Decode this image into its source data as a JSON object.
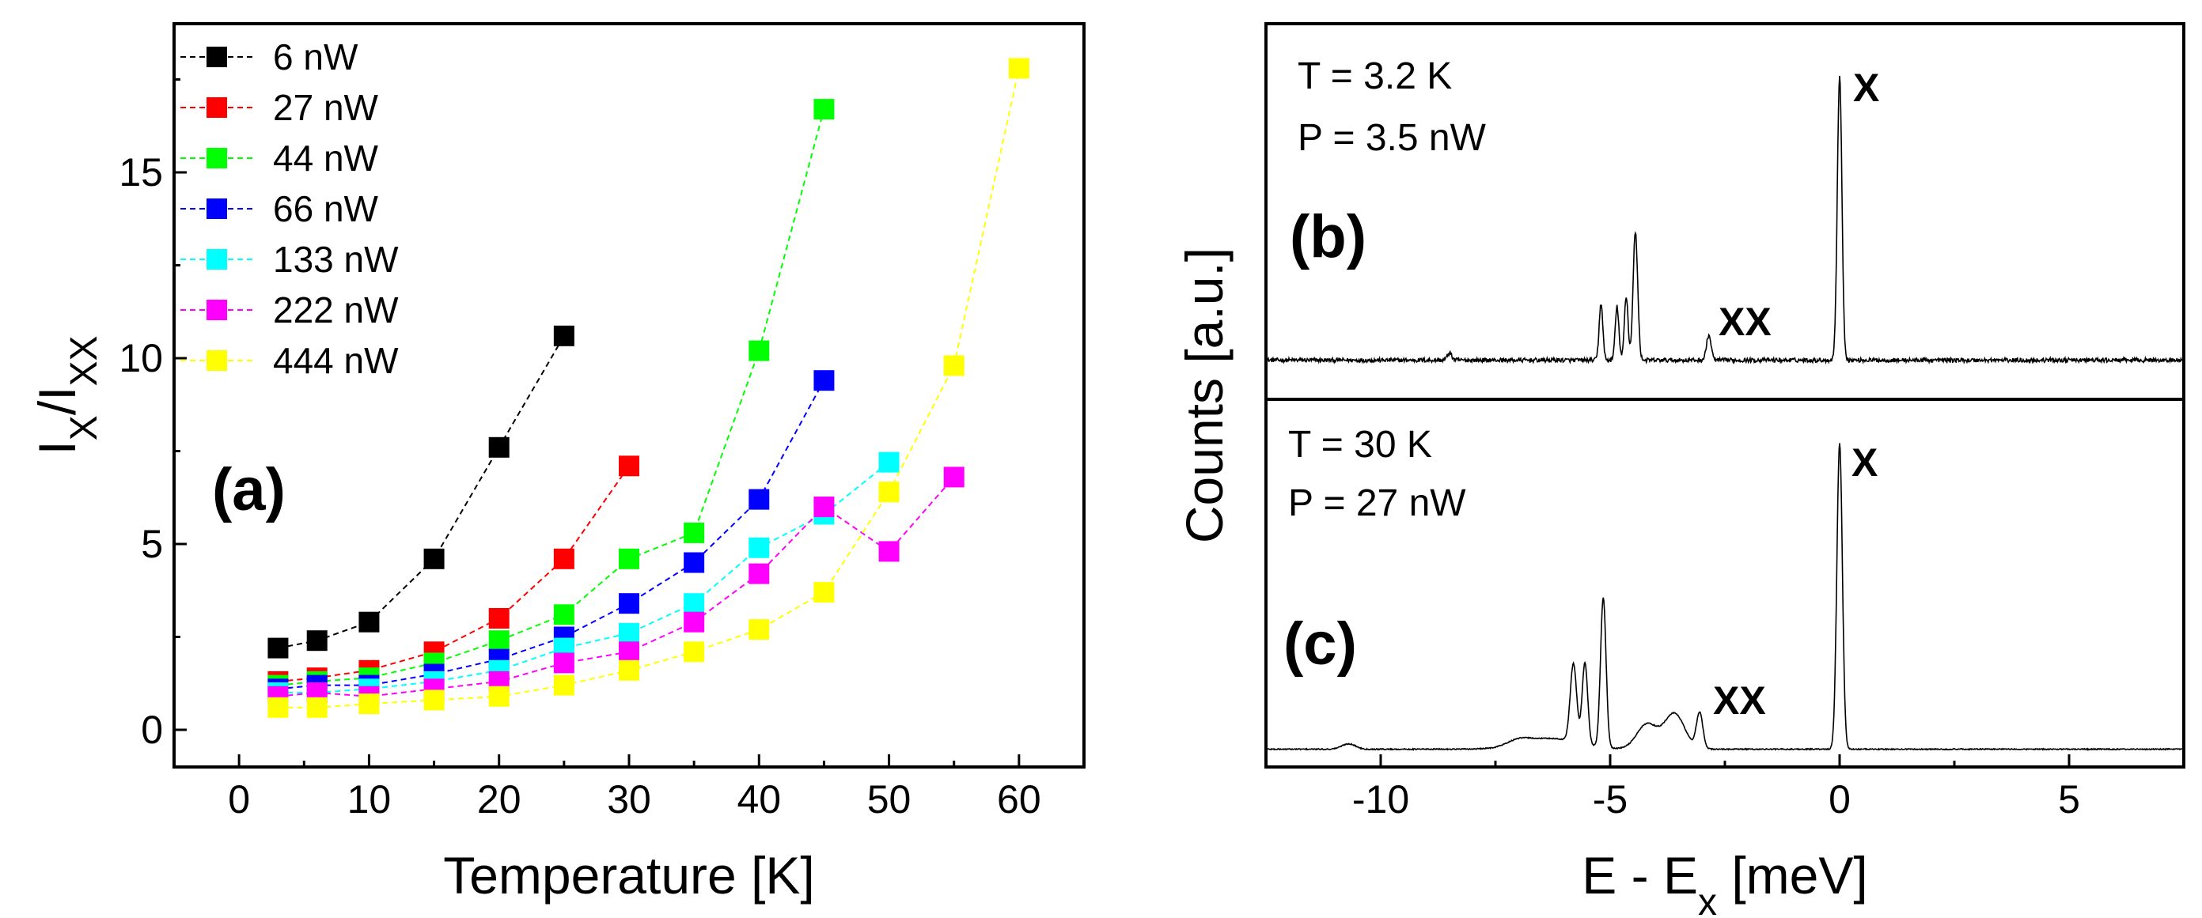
{
  "chart_data": [
    {
      "id": "a",
      "type": "scatter",
      "panel_label": "(a)",
      "xlabel": "Temperature [K]",
      "ylabel": {
        "main": "I",
        "sub1": "X",
        "slash": "/I",
        "sub2": "XX"
      },
      "xlim": [
        -5,
        65
      ],
      "ylim": [
        -1,
        19
      ],
      "xticks": [
        0,
        10,
        20,
        30,
        40,
        50,
        60
      ],
      "yticks": [
        0,
        5,
        10,
        15
      ],
      "legend_position": "top-left",
      "series": [
        {
          "name": "6 nW",
          "color": "#000000",
          "x": [
            3,
            6,
            10,
            15,
            20,
            25
          ],
          "y": [
            2.2,
            2.4,
            2.9,
            4.6,
            7.6,
            10.6
          ]
        },
        {
          "name": "27 nW",
          "color": "#ff0000",
          "x": [
            3,
            6,
            10,
            15,
            20,
            25,
            30
          ],
          "y": [
            1.3,
            1.4,
            1.6,
            2.1,
            3.0,
            4.6,
            7.1
          ]
        },
        {
          "name": "44 nW",
          "color": "#00ff00",
          "x": [
            3,
            6,
            10,
            15,
            20,
            25,
            30,
            35,
            40,
            45
          ],
          "y": [
            1.2,
            1.3,
            1.4,
            1.8,
            2.4,
            3.1,
            4.6,
            5.3,
            10.2,
            16.7
          ]
        },
        {
          "name": "66 nW",
          "color": "#0000ff",
          "x": [
            3,
            6,
            10,
            15,
            20,
            25,
            30,
            35,
            40,
            45
          ],
          "y": [
            1.1,
            1.2,
            1.2,
            1.5,
            1.9,
            2.5,
            3.4,
            4.5,
            6.2,
            9.4
          ]
        },
        {
          "name": "133 nW",
          "color": "#00ffff",
          "x": [
            3,
            6,
            10,
            15,
            20,
            25,
            30,
            35,
            40,
            45,
            50
          ],
          "y": [
            1.0,
            1.0,
            1.1,
            1.3,
            1.6,
            2.2,
            2.6,
            3.4,
            4.9,
            5.8,
            7.2
          ]
        },
        {
          "name": "222 nW",
          "color": "#ff00ff",
          "x": [
            3,
            6,
            10,
            15,
            20,
            25,
            30,
            35,
            40,
            45,
            50,
            55
          ],
          "y": [
            0.9,
            1.0,
            0.9,
            1.1,
            1.3,
            1.8,
            2.1,
            2.9,
            4.2,
            6.0,
            4.8,
            6.8
          ]
        },
        {
          "name": "444 nW",
          "color": "#ffff00",
          "x": [
            3,
            6,
            10,
            15,
            20,
            25,
            30,
            35,
            40,
            45,
            50,
            55,
            60
          ],
          "y": [
            0.6,
            0.6,
            0.7,
            0.8,
            0.9,
            1.2,
            1.6,
            2.1,
            2.7,
            3.7,
            6.4,
            9.8,
            17.8
          ]
        }
      ]
    },
    {
      "id": "b",
      "type": "line",
      "panel_label": "(b)",
      "annotations": [
        "T = 3.2 K",
        "P = 3.5 nW"
      ],
      "peak_labels": {
        "X": "X",
        "XX": "XX"
      },
      "xlim": [
        -12.5,
        7.5
      ],
      "ylim": [
        0,
        1
      ],
      "baseline": 0.11,
      "noise": 0.012,
      "peaks": [
        {
          "center": 0.0,
          "height": 0.8,
          "width": 0.05
        },
        {
          "center": -2.85,
          "height": 0.07,
          "width": 0.05
        },
        {
          "center": -4.45,
          "height": 0.36,
          "width": 0.05
        },
        {
          "center": -4.65,
          "height": 0.18,
          "width": 0.04
        },
        {
          "center": -4.85,
          "height": 0.15,
          "width": 0.04
        },
        {
          "center": -5.2,
          "height": 0.16,
          "width": 0.04
        },
        {
          "center": -8.5,
          "height": 0.02,
          "width": 0.05
        }
      ]
    },
    {
      "id": "c",
      "type": "line",
      "panel_label": "(c)",
      "xlabel": {
        "main": "E - E",
        "sub": "x",
        "tail": " [meV]"
      },
      "annotations": [
        "T = 30 K",
        "P = 27 nW"
      ],
      "peak_labels": {
        "X": "X",
        "XX": "XX"
      },
      "xlim": [
        -12.5,
        7.5
      ],
      "ylim": [
        0,
        1
      ],
      "xticks": [
        -10,
        -5,
        0,
        5
      ],
      "baseline": 0.05,
      "noise": 0.003,
      "peaks": [
        {
          "center": 0.0,
          "height": 0.86,
          "width": 0.06
        },
        {
          "center": -3.05,
          "height": 0.1,
          "width": 0.07
        },
        {
          "center": -3.6,
          "height": 0.1,
          "width": 0.22
        },
        {
          "center": -4.2,
          "height": 0.07,
          "width": 0.22
        },
        {
          "center": -5.15,
          "height": 0.42,
          "width": 0.06
        },
        {
          "center": -5.55,
          "height": 0.23,
          "width": 0.06
        },
        {
          "center": -5.8,
          "height": 0.22,
          "width": 0.07
        },
        {
          "center": -6.3,
          "height": 0.03,
          "width": 0.6
        },
        {
          "center": -7.0,
          "height": 0.015,
          "width": 0.25
        },
        {
          "center": -10.7,
          "height": 0.015,
          "width": 0.15
        }
      ]
    }
  ],
  "shared_ylabel": "Counts [a.u.]"
}
